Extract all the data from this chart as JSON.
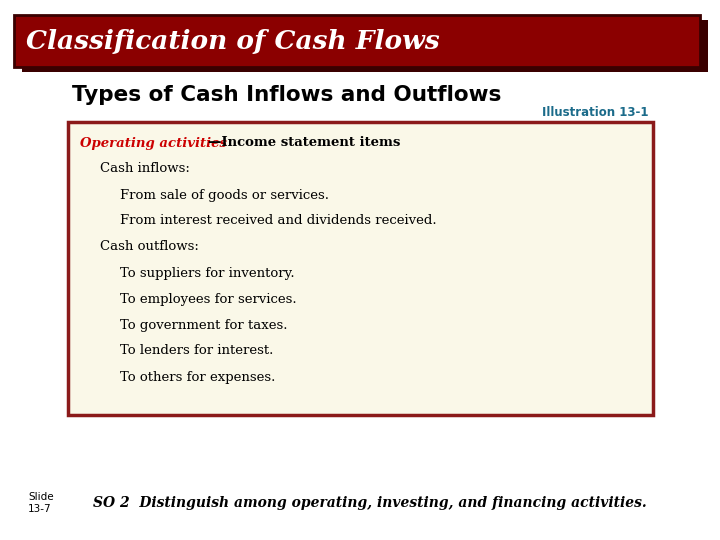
{
  "title": "Classification of Cash Flows",
  "title_bg_color": "#8B0000",
  "title_shadow_color": "#3a0000",
  "title_text_color": "#FFFFFF",
  "subtitle": "Types of Cash Inflows and Outflows",
  "subtitle_color": "#000000",
  "illustration_label": "Illustration 13-1",
  "illustration_color": "#1B6B8A",
  "box_bg_color": "#FAF8E8",
  "box_border_color": "#8B1A1A",
  "line1_red": "Operating activities",
  "line1_dash": "—",
  "line1_black": "Income statement items",
  "line2": "Cash inflows:",
  "line3": "From sale of goods or services.",
  "line4": "From interest received and dividends received.",
  "line5": "Cash outflows:",
  "line6": "To suppliers for inventory.",
  "line7": "To employees for services.",
  "line8": "To government for taxes.",
  "line9": "To lenders for interest.",
  "line10": "To others for expenses.",
  "slide_label_line1": "Slide",
  "slide_label_line2": "13-7",
  "footer_text": "SO 2  Distinguish among operating, investing, and financing activities.",
  "footer_color": "#000000",
  "bg_color": "#FFFFFF"
}
